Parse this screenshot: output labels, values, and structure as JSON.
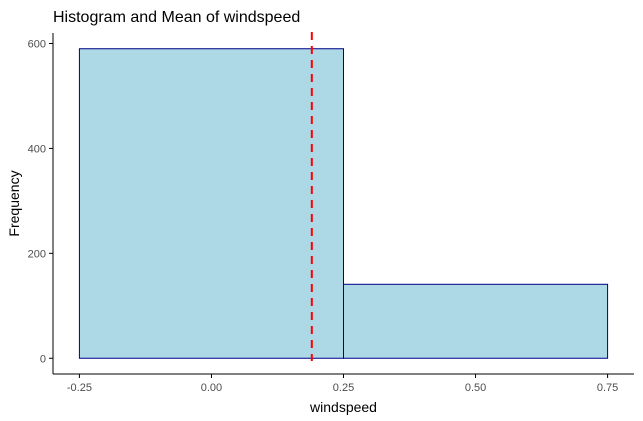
{
  "chart_data": {
    "type": "bar",
    "subtype": "histogram",
    "title": "Histogram and Mean of  windspeed",
    "xlabel": "windspeed",
    "ylabel": "Frequency",
    "bins": [
      {
        "x_start": -0.25,
        "x_end": 0.25,
        "value": 590
      },
      {
        "x_start": 0.25,
        "x_end": 0.75,
        "value": 141
      }
    ],
    "mean": 0.19,
    "xlim": [
      -0.3,
      0.8
    ],
    "ylim": [
      -30,
      620
    ],
    "x_ticks": [
      -0.25,
      0.0,
      0.25,
      0.5,
      0.75
    ],
    "x_tick_labels": [
      "-0.25",
      "0.00",
      "0.25",
      "0.50",
      "0.75"
    ],
    "y_ticks": [
      0,
      200,
      400,
      600
    ],
    "y_tick_labels": [
      "0",
      "200",
      "400",
      "600"
    ],
    "grid": false,
    "colors": {
      "bar_fill": "#add8e6",
      "bar_stroke": "#00008b",
      "mean_line": "#ff0000",
      "axis": "#000000",
      "tick_label": "#4d4d4d"
    }
  }
}
